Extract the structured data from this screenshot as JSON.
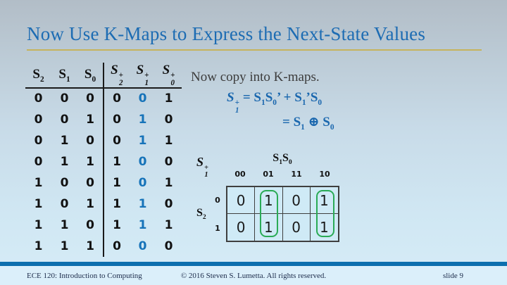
{
  "title": "Now Use K-Maps to Express the Next-State Values",
  "note": "Now copy into K-maps.",
  "colors": {
    "title_blue": "#1d6cb3",
    "gold_rule": "#c6b35d",
    "equation_blue": "#1a67ae",
    "highlight_digit_blue": "#1673b9",
    "group_green": "#2aab56",
    "footer_bar_blue": "#0d6fae"
  },
  "truth_table": {
    "headers": [
      {
        "base": "S",
        "sub": "2"
      },
      {
        "base": "S",
        "sub": "1"
      },
      {
        "base": "S",
        "sub": "0"
      },
      {
        "base": "S",
        "sub": "2",
        "sup": "+"
      },
      {
        "base": "S",
        "sub": "1",
        "sup": "+"
      },
      {
        "base": "S",
        "sub": "0",
        "sup": "+"
      }
    ],
    "highlighted_column": "S1+",
    "rows": [
      [
        "0",
        "0",
        "0",
        "0",
        "0",
        "1"
      ],
      [
        "0",
        "0",
        "1",
        "0",
        "1",
        "0"
      ],
      [
        "0",
        "1",
        "0",
        "0",
        "1",
        "1"
      ],
      [
        "0",
        "1",
        "1",
        "1",
        "0",
        "0"
      ],
      [
        "1",
        "0",
        "0",
        "1",
        "0",
        "1"
      ],
      [
        "1",
        "0",
        "1",
        "1",
        "1",
        "0"
      ],
      [
        "1",
        "1",
        "0",
        "1",
        "1",
        "1"
      ],
      [
        "1",
        "1",
        "1",
        "0",
        "0",
        "0"
      ]
    ]
  },
  "equation": {
    "lhs": {
      "base": "S",
      "sub": "1",
      "sup": "+"
    },
    "line1": [
      {
        "t": "= S"
      },
      {
        "sub": "1"
      },
      {
        "t": "S"
      },
      {
        "sub": "0"
      },
      {
        "t": "’ + S"
      },
      {
        "sub": "1"
      },
      {
        "t": "’S"
      },
      {
        "sub": "0"
      }
    ],
    "line2": [
      {
        "t": "= S"
      },
      {
        "sub": "1"
      },
      {
        "t": " ⊕ S"
      },
      {
        "sub": "0"
      }
    ]
  },
  "kmap": {
    "output": {
      "base": "S",
      "sub": "1",
      "sup": "+"
    },
    "col_var": [
      {
        "base": "S",
        "sub": "1"
      },
      {
        "base": "S",
        "sub": "0"
      }
    ],
    "col_headers": [
      "00",
      "01",
      "11",
      "10"
    ],
    "row_var": {
      "base": "S",
      "sub": "2"
    },
    "row_headers": [
      "0",
      "1"
    ],
    "cells": [
      [
        "0",
        "1",
        "0",
        "1"
      ],
      [
        "0",
        "1",
        "0",
        "1"
      ]
    ],
    "groups": [
      "column 01 both rows",
      "column 10 both rows"
    ]
  },
  "footer": {
    "course": "ECE 120: Introduction to Computing",
    "copyright": "© 2016 Steven S. Lumetta.  All rights reserved.",
    "slide_number": "slide 9"
  }
}
